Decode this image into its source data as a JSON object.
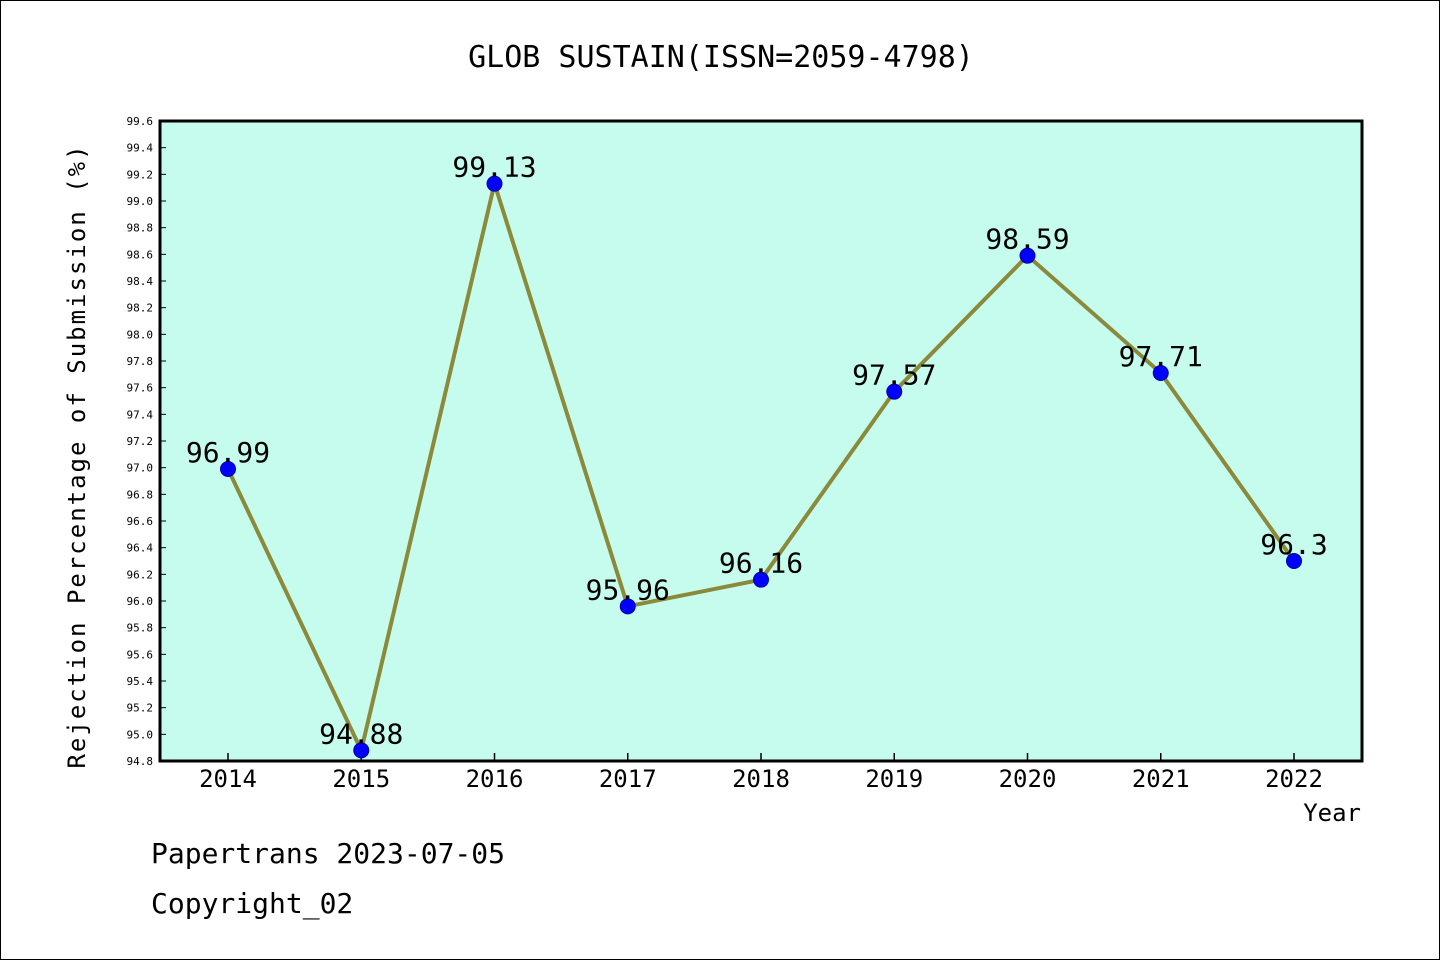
{
  "chart_data": {
    "type": "line",
    "title": "GLOB SUSTAIN(ISSN=2059-4798)",
    "xlabel": "Year",
    "ylabel": "Rejection Percentage of Submission (%)",
    "categories": [
      "2014",
      "2015",
      "2016",
      "2017",
      "2018",
      "2019",
      "2020",
      "2021",
      "2022"
    ],
    "values": [
      96.99,
      94.88,
      99.13,
      95.96,
      96.16,
      97.57,
      98.59,
      97.71,
      96.3
    ],
    "data_labels": [
      "96.99",
      "94.88",
      "99.13",
      "95.96",
      "96.16",
      "97.57",
      "98.59",
      "97.71",
      "96.3"
    ],
    "ylim": [
      94.8,
      99.6
    ],
    "yticks": [
      "94.8",
      "95.0",
      "95.2",
      "95.4",
      "95.6",
      "95.8",
      "96.0",
      "96.2",
      "96.4",
      "96.6",
      "96.8",
      "97.0",
      "97.2",
      "97.4",
      "97.6",
      "97.8",
      "98.0",
      "98.2",
      "98.4",
      "98.6",
      "98.8",
      "99.0",
      "99.2",
      "99.4",
      "99.6"
    ],
    "grid": false,
    "colors": {
      "plot_background": "#c6fcee",
      "line": "#8b8a3a",
      "marker": "#0000ff"
    }
  },
  "footer": {
    "line1": "Papertrans 2023-07-05",
    "line2": "Copyright_02"
  }
}
